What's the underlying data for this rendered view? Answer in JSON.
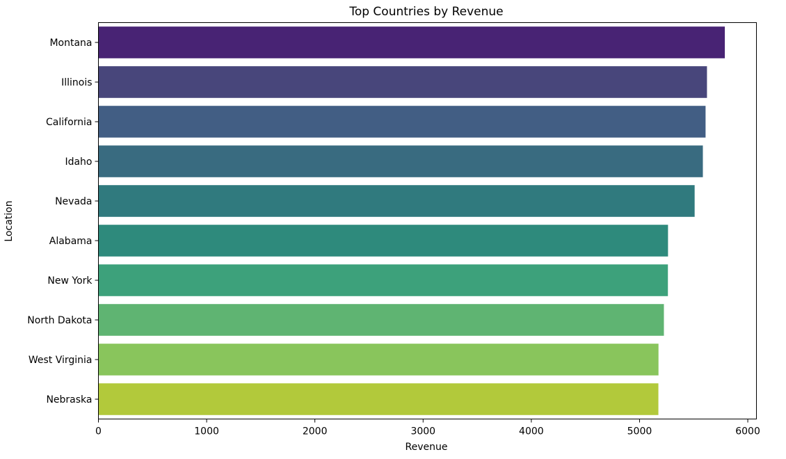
{
  "chart_data": {
    "type": "bar",
    "orientation": "horizontal",
    "title": "Top Countries by Revenue",
    "xlabel": "Revenue",
    "ylabel": "Location",
    "categories": [
      "Montana",
      "Illinois",
      "California",
      "Idaho",
      "Nevada",
      "Alabama",
      "New York",
      "North Dakota",
      "West Virginia",
      "Nebraska"
    ],
    "values": [
      5788,
      5623,
      5610,
      5585,
      5509,
      5263,
      5262,
      5225,
      5175,
      5174
    ],
    "colors": [
      "#482374",
      "#48467b",
      "#425e84",
      "#396b80",
      "#307a7e",
      "#2e8a7c",
      "#3da17b",
      "#5fb472",
      "#89c55c",
      "#b2c93b"
    ],
    "xlim": [
      0,
      6080
    ],
    "xticks": [
      0,
      1000,
      2000,
      3000,
      4000,
      5000,
      6000
    ],
    "xtick_labels": [
      "0",
      "1000",
      "2000",
      "3000",
      "4000",
      "5000",
      "6000"
    ],
    "grid": false,
    "legend": "none"
  }
}
